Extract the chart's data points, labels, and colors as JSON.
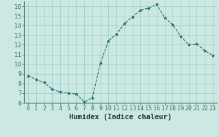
{
  "x": [
    0,
    1,
    2,
    3,
    4,
    5,
    6,
    7,
    8,
    9,
    10,
    11,
    12,
    13,
    14,
    15,
    16,
    17,
    18,
    19,
    20,
    21,
    22,
    23
  ],
  "y": [
    8.8,
    8.4,
    8.1,
    7.4,
    7.1,
    7.0,
    6.9,
    6.1,
    6.5,
    10.1,
    12.4,
    13.1,
    14.2,
    14.9,
    15.6,
    15.8,
    16.2,
    14.8,
    14.1,
    12.9,
    12.0,
    12.1,
    11.4,
    10.9
  ],
  "line_color": "#1a6b5a",
  "marker": "*",
  "marker_size": 3,
  "background_color": "#cce8e4",
  "grid_color": "#99ccc6",
  "xlabel": "Humidex (Indice chaleur)",
  "xlabel_fontsize": 7.5,
  "xlim": [
    -0.5,
    23.5
  ],
  "ylim": [
    6,
    16.5
  ],
  "yticks": [
    6,
    7,
    8,
    9,
    10,
    11,
    12,
    13,
    14,
    15,
    16
  ],
  "xticks": [
    0,
    1,
    2,
    3,
    4,
    5,
    6,
    7,
    8,
    9,
    10,
    11,
    12,
    13,
    14,
    15,
    16,
    17,
    18,
    19,
    20,
    21,
    22,
    23
  ],
  "tick_fontsize": 6,
  "bottom_bar_color": "#2d6b58",
  "spine_color": "#2d6b58"
}
